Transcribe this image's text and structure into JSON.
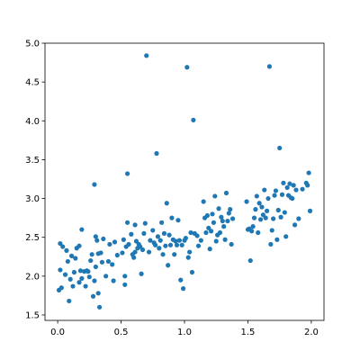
{
  "chart_data": {
    "type": "scatter",
    "title": "",
    "xlabel": "",
    "ylabel": "",
    "xlim": [
      -0.1,
      2.1
    ],
    "ylim": [
      1.43,
      5.0
    ],
    "grid": false,
    "marker_color": "#1f77b4",
    "xticks": [
      0.0,
      0.5,
      1.0,
      1.5,
      2.0
    ],
    "xtick_labels": [
      "0.0",
      "0.5",
      "1.0",
      "1.5",
      "2.0"
    ],
    "yticks": [
      1.5,
      2.0,
      2.5,
      3.0,
      3.5,
      4.0,
      4.5,
      5.0
    ],
    "ytick_labels": [
      "1.5",
      "2.0",
      "2.5",
      "3.0",
      "3.5",
      "4.0",
      "4.5",
      "5.0"
    ],
    "points": [
      [
        0.01,
        1.82
      ],
      [
        0.02,
        2.42
      ],
      [
        0.02,
        2.08
      ],
      [
        0.03,
        1.85
      ],
      [
        0.04,
        2.38
      ],
      [
        0.06,
        2.02
      ],
      [
        0.07,
        2.33
      ],
      [
        0.08,
        2.19
      ],
      [
        0.09,
        1.68
      ],
      [
        0.1,
        1.96
      ],
      [
        0.11,
        2.26
      ],
      [
        0.12,
        1.87
      ],
      [
        0.13,
        2.05
      ],
      [
        0.14,
        2.23
      ],
      [
        0.15,
        2.36
      ],
      [
        0.17,
        2.39
      ],
      [
        0.17,
        1.92
      ],
      [
        0.18,
        2.07
      ],
      [
        0.19,
        1.97
      ],
      [
        0.19,
        2.6
      ],
      [
        0.21,
        2.06
      ],
      [
        0.22,
        1.87
      ],
      [
        0.23,
        2.07
      ],
      [
        0.24,
        2.06
      ],
      [
        0.25,
        1.99
      ],
      [
        0.26,
        2.2
      ],
      [
        0.27,
        2.28
      ],
      [
        0.28,
        1.74
      ],
      [
        0.29,
        3.18
      ],
      [
        0.29,
        1.94
      ],
      [
        0.3,
        2.12
      ],
      [
        0.3,
        2.51
      ],
      [
        0.31,
        2.46
      ],
      [
        0.32,
        2.29
      ],
      [
        0.32,
        1.78
      ],
      [
        0.33,
        1.6
      ],
      [
        0.34,
        2.3
      ],
      [
        0.35,
        2.18
      ],
      [
        0.36,
        2.48
      ],
      [
        0.38,
        2.0
      ],
      [
        0.4,
        2.19
      ],
      [
        0.41,
        2.41
      ],
      [
        0.43,
        2.15
      ],
      [
        0.44,
        1.94
      ],
      [
        0.45,
        2.44
      ],
      [
        0.47,
        2.27
      ],
      [
        0.51,
        2.3
      ],
      [
        0.52,
        2.47
      ],
      [
        0.53,
        2.0
      ],
      [
        0.53,
        1.89
      ],
      [
        0.54,
        2.38
      ],
      [
        0.55,
        2.69
      ],
      [
        0.55,
        3.32
      ],
      [
        0.56,
        2.41
      ],
      [
        0.58,
        2.54
      ],
      [
        0.59,
        2.28
      ],
      [
        0.6,
        2.24
      ],
      [
        0.61,
        2.31
      ],
      [
        0.61,
        2.66
      ],
      [
        0.62,
        2.45
      ],
      [
        0.63,
        2.36
      ],
      [
        0.64,
        2.41
      ],
      [
        0.65,
        2.38
      ],
      [
        0.66,
        2.03
      ],
      [
        0.67,
        2.34
      ],
      [
        0.68,
        2.55
      ],
      [
        0.69,
        2.68
      ],
      [
        0.7,
        4.84
      ],
      [
        0.72,
        2.31
      ],
      [
        0.73,
        2.46
      ],
      [
        0.75,
        2.59
      ],
      [
        0.76,
        2.43
      ],
      [
        0.77,
        2.4
      ],
      [
        0.78,
        3.58
      ],
      [
        0.79,
        2.51
      ],
      [
        0.8,
        2.36
      ],
      [
        0.81,
        2.46
      ],
      [
        0.82,
        2.69
      ],
      [
        0.83,
        2.28
      ],
      [
        0.84,
        2.55
      ],
      [
        0.85,
        2.39
      ],
      [
        0.86,
        2.94
      ],
      [
        0.87,
        2.14
      ],
      [
        0.88,
        2.53
      ],
      [
        0.89,
        2.4
      ],
      [
        0.9,
        2.75
      ],
      [
        0.91,
        2.47
      ],
      [
        0.92,
        2.28
      ],
      [
        0.93,
        2.45
      ],
      [
        0.94,
        2.4
      ],
      [
        0.95,
        2.72
      ],
      [
        0.96,
        2.46
      ],
      [
        0.97,
        1.95
      ],
      [
        0.98,
        2.4
      ],
      [
        0.99,
        1.84
      ],
      [
        1.0,
        2.46
      ],
      [
        1.01,
        2.49
      ],
      [
        1.02,
        4.69
      ],
      [
        1.03,
        2.24
      ],
      [
        1.04,
        2.31
      ],
      [
        1.05,
        2.56
      ],
      [
        1.06,
        2.05
      ],
      [
        1.07,
        4.01
      ],
      [
        1.08,
        2.55
      ],
      [
        1.1,
        2.52
      ],
      [
        1.11,
        2.39
      ],
      [
        1.13,
        2.46
      ],
      [
        1.15,
        2.96
      ],
      [
        1.16,
        2.75
      ],
      [
        1.17,
        2.56
      ],
      [
        1.18,
        2.78
      ],
      [
        1.19,
        2.62
      ],
      [
        1.2,
        2.35
      ],
      [
        1.21,
        2.58
      ],
      [
        1.22,
        2.8
      ],
      [
        1.23,
        2.69
      ],
      [
        1.24,
        3.03
      ],
      [
        1.25,
        2.45
      ],
      [
        1.26,
        2.53
      ],
      [
        1.27,
        2.87
      ],
      [
        1.28,
        2.56
      ],
      [
        1.29,
        2.76
      ],
      [
        1.3,
        2.71
      ],
      [
        1.31,
        2.64
      ],
      [
        1.32,
        2.47
      ],
      [
        1.33,
        3.07
      ],
      [
        1.34,
        2.71
      ],
      [
        1.35,
        2.81
      ],
      [
        1.36,
        2.86
      ],
      [
        1.37,
        2.41
      ],
      [
        1.38,
        2.74
      ],
      [
        1.49,
        2.96
      ],
      [
        1.5,
        2.6
      ],
      [
        1.51,
        2.61
      ],
      [
        1.52,
        2.2
      ],
      [
        1.53,
        2.58
      ],
      [
        1.54,
        2.64
      ],
      [
        1.55,
        2.75
      ],
      [
        1.56,
        2.86
      ],
      [
        1.57,
        3.03
      ],
      [
        1.58,
        2.56
      ],
      [
        1.59,
        2.94
      ],
      [
        1.6,
        2.73
      ],
      [
        1.61,
        2.89
      ],
      [
        1.62,
        2.79
      ],
      [
        1.63,
        3.11
      ],
      [
        1.64,
        2.75
      ],
      [
        1.65,
        2.84
      ],
      [
        1.66,
        3.0
      ],
      [
        1.67,
        4.7
      ],
      [
        1.68,
        2.41
      ],
      [
        1.69,
        2.59
      ],
      [
        1.7,
        2.74
      ],
      [
        1.71,
        3.04
      ],
      [
        1.72,
        3.1
      ],
      [
        1.73,
        2.47
      ],
      [
        1.74,
        2.85
      ],
      [
        1.75,
        3.65
      ],
      [
        1.76,
        2.76
      ],
      [
        1.77,
        3.05
      ],
      [
        1.78,
        3.2
      ],
      [
        1.79,
        2.82
      ],
      [
        1.8,
        2.51
      ],
      [
        1.81,
        3.14
      ],
      [
        1.82,
        3.04
      ],
      [
        1.83,
        3.19
      ],
      [
        1.84,
        3.01
      ],
      [
        1.85,
        3.0
      ],
      [
        1.86,
        3.17
      ],
      [
        1.87,
        2.66
      ],
      [
        1.88,
        3.11
      ],
      [
        1.9,
        2.74
      ],
      [
        1.93,
        3.12
      ],
      [
        1.96,
        3.2
      ],
      [
        1.97,
        3.17
      ],
      [
        1.98,
        3.33
      ],
      [
        1.99,
        2.84
      ]
    ]
  }
}
